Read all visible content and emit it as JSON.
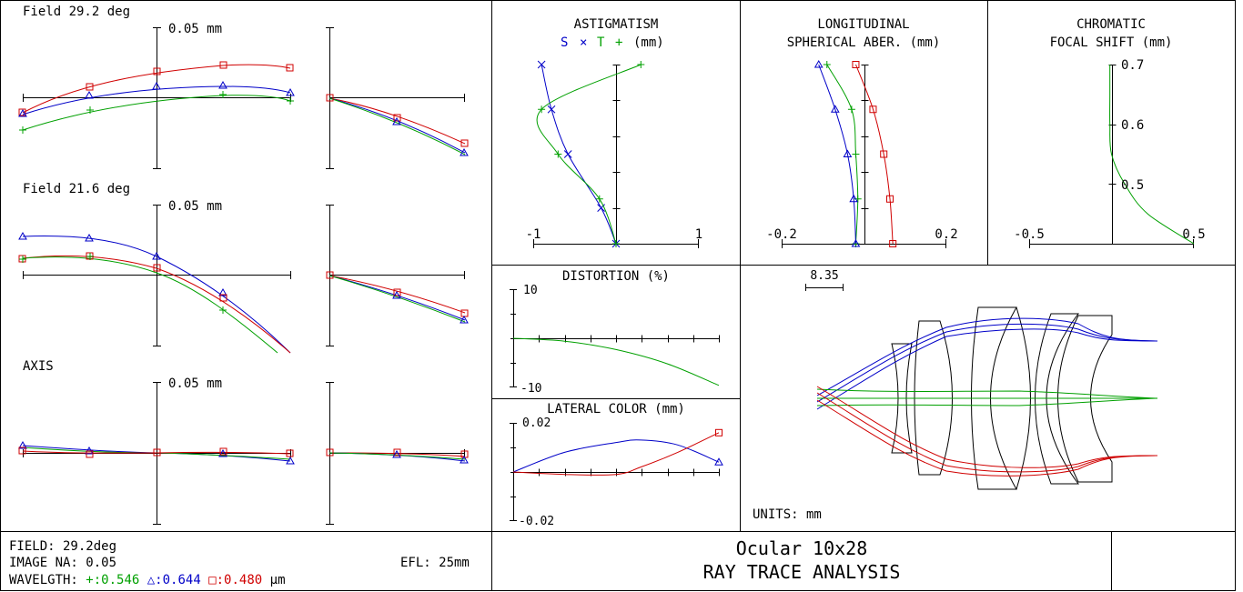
{
  "colors": {
    "green": "#00a000",
    "blue": "#0000c8",
    "red": "#d00000"
  },
  "ray_fan": {
    "fields": [
      {
        "label": "Field 29.2 deg",
        "scale_label": "0.05 mm"
      },
      {
        "label": "Field 21.6 deg",
        "scale_label": "0.05 mm"
      },
      {
        "label": "AXIS",
        "scale_label": "0.05 mm"
      }
    ]
  },
  "chart_data": [
    {
      "type": "line",
      "title": "ASTIGMATISM",
      "legend": {
        "s": "S",
        "x": "×",
        "t": "T",
        "plus": "+",
        "unit": "(mm)"
      },
      "xlim": [
        -1,
        1
      ],
      "ylim": [
        0,
        1
      ],
      "tick_labels": {
        "left": "-1",
        "right": "1"
      },
      "series": [
        {
          "color": "blue",
          "marker": "x",
          "y": [
            0,
            0.2,
            0.5,
            0.75,
            1.0
          ],
          "x": [
            0.0,
            -0.18,
            -0.58,
            -0.78,
            -0.9
          ]
        },
        {
          "color": "green",
          "marker": "+",
          "y": [
            0,
            0.25,
            0.5,
            0.75,
            1.0
          ],
          "x": [
            0.0,
            -0.2,
            -0.7,
            -0.9,
            0.3
          ]
        }
      ]
    },
    {
      "type": "line",
      "title": "LONGITUDINAL",
      "subtitle": "SPHERICAL ABER. (mm)",
      "xlim": [
        -0.2,
        0.2
      ],
      "ylim": [
        0,
        1
      ],
      "tick_labels": {
        "left": "-0.2",
        "right": "0.2"
      },
      "series": [
        {
          "color": "red",
          "marker": "square",
          "y": [
            0,
            0.25,
            0.5,
            0.75,
            1.0
          ],
          "x": [
            0.07,
            0.063,
            0.048,
            0.022,
            -0.02
          ]
        },
        {
          "color": "green",
          "marker": "+",
          "y": [
            0,
            0.25,
            0.5,
            0.75,
            1.0
          ],
          "x": [
            -0.02,
            -0.015,
            -0.02,
            -0.03,
            -0.09
          ]
        },
        {
          "color": "blue",
          "marker": "triangle",
          "y": [
            0,
            0.25,
            0.5,
            0.75,
            1.0
          ],
          "x": [
            -0.02,
            -0.025,
            -0.04,
            -0.07,
            -0.11
          ]
        }
      ]
    },
    {
      "type": "line",
      "title": "CHROMATIC",
      "subtitle": "FOCAL SHIFT (mm)",
      "xlim": [
        -0.5,
        0.5
      ],
      "ylim": [
        0.4,
        0.7
      ],
      "tick_labels": {
        "left": "-0.5",
        "right": "0.5",
        "y": [
          "0.7",
          "0.6",
          "0.5"
        ]
      },
      "series": [
        {
          "color": "green",
          "y": [
            0.4,
            0.45,
            0.5,
            0.55,
            0.6,
            0.65,
            0.7
          ],
          "x": [
            0.5,
            0.22,
            0.08,
            0.0,
            -0.01,
            -0.01,
            -0.01
          ]
        }
      ]
    },
    {
      "type": "line",
      "title": "DISTORTION (%)",
      "ylim": [
        -10,
        10
      ],
      "tick_labels": {
        "top": "10",
        "bottom": "-10"
      },
      "series": [
        {
          "color": "green",
          "x": [
            0,
            0.25,
            0.5,
            0.75,
            1.0
          ],
          "y": [
            0,
            -0.6,
            -2.3,
            -5.2,
            -9.6
          ]
        }
      ]
    },
    {
      "type": "line",
      "title": "LATERAL COLOR (mm)",
      "ylim": [
        -0.02,
        0.02
      ],
      "tick_labels": {
        "top": "0.02",
        "bottom": "-0.02"
      },
      "series": [
        {
          "color": "blue",
          "x": [
            0,
            0.25,
            0.5,
            0.62,
            0.8,
            1.0
          ],
          "y": [
            0,
            0.008,
            0.012,
            0.013,
            0.011,
            0.004
          ]
        },
        {
          "color": "red",
          "x": [
            0,
            0.25,
            0.5,
            0.62,
            0.8,
            1.0
          ],
          "y": [
            0,
            -0.001,
            -0.001,
            0.002,
            0.008,
            0.016
          ]
        }
      ]
    }
  ],
  "layout_view": {
    "scale_label": "8.35",
    "units_label": "UNITS: mm"
  },
  "footer": {
    "field": "FIELD: 29.2deg",
    "image_na": "IMAGE NA: 0.05",
    "efl": "EFL: 25mm",
    "wavelength_prefix": "WAVELGTH:",
    "wl_green": "+:0.546",
    "wl_blue": "△:0.644",
    "wl_red": "□:0.480",
    "wl_unit": "μm",
    "title_line1": "Ocular 10x28",
    "title_line2": "RAY TRACE ANALYSIS"
  }
}
